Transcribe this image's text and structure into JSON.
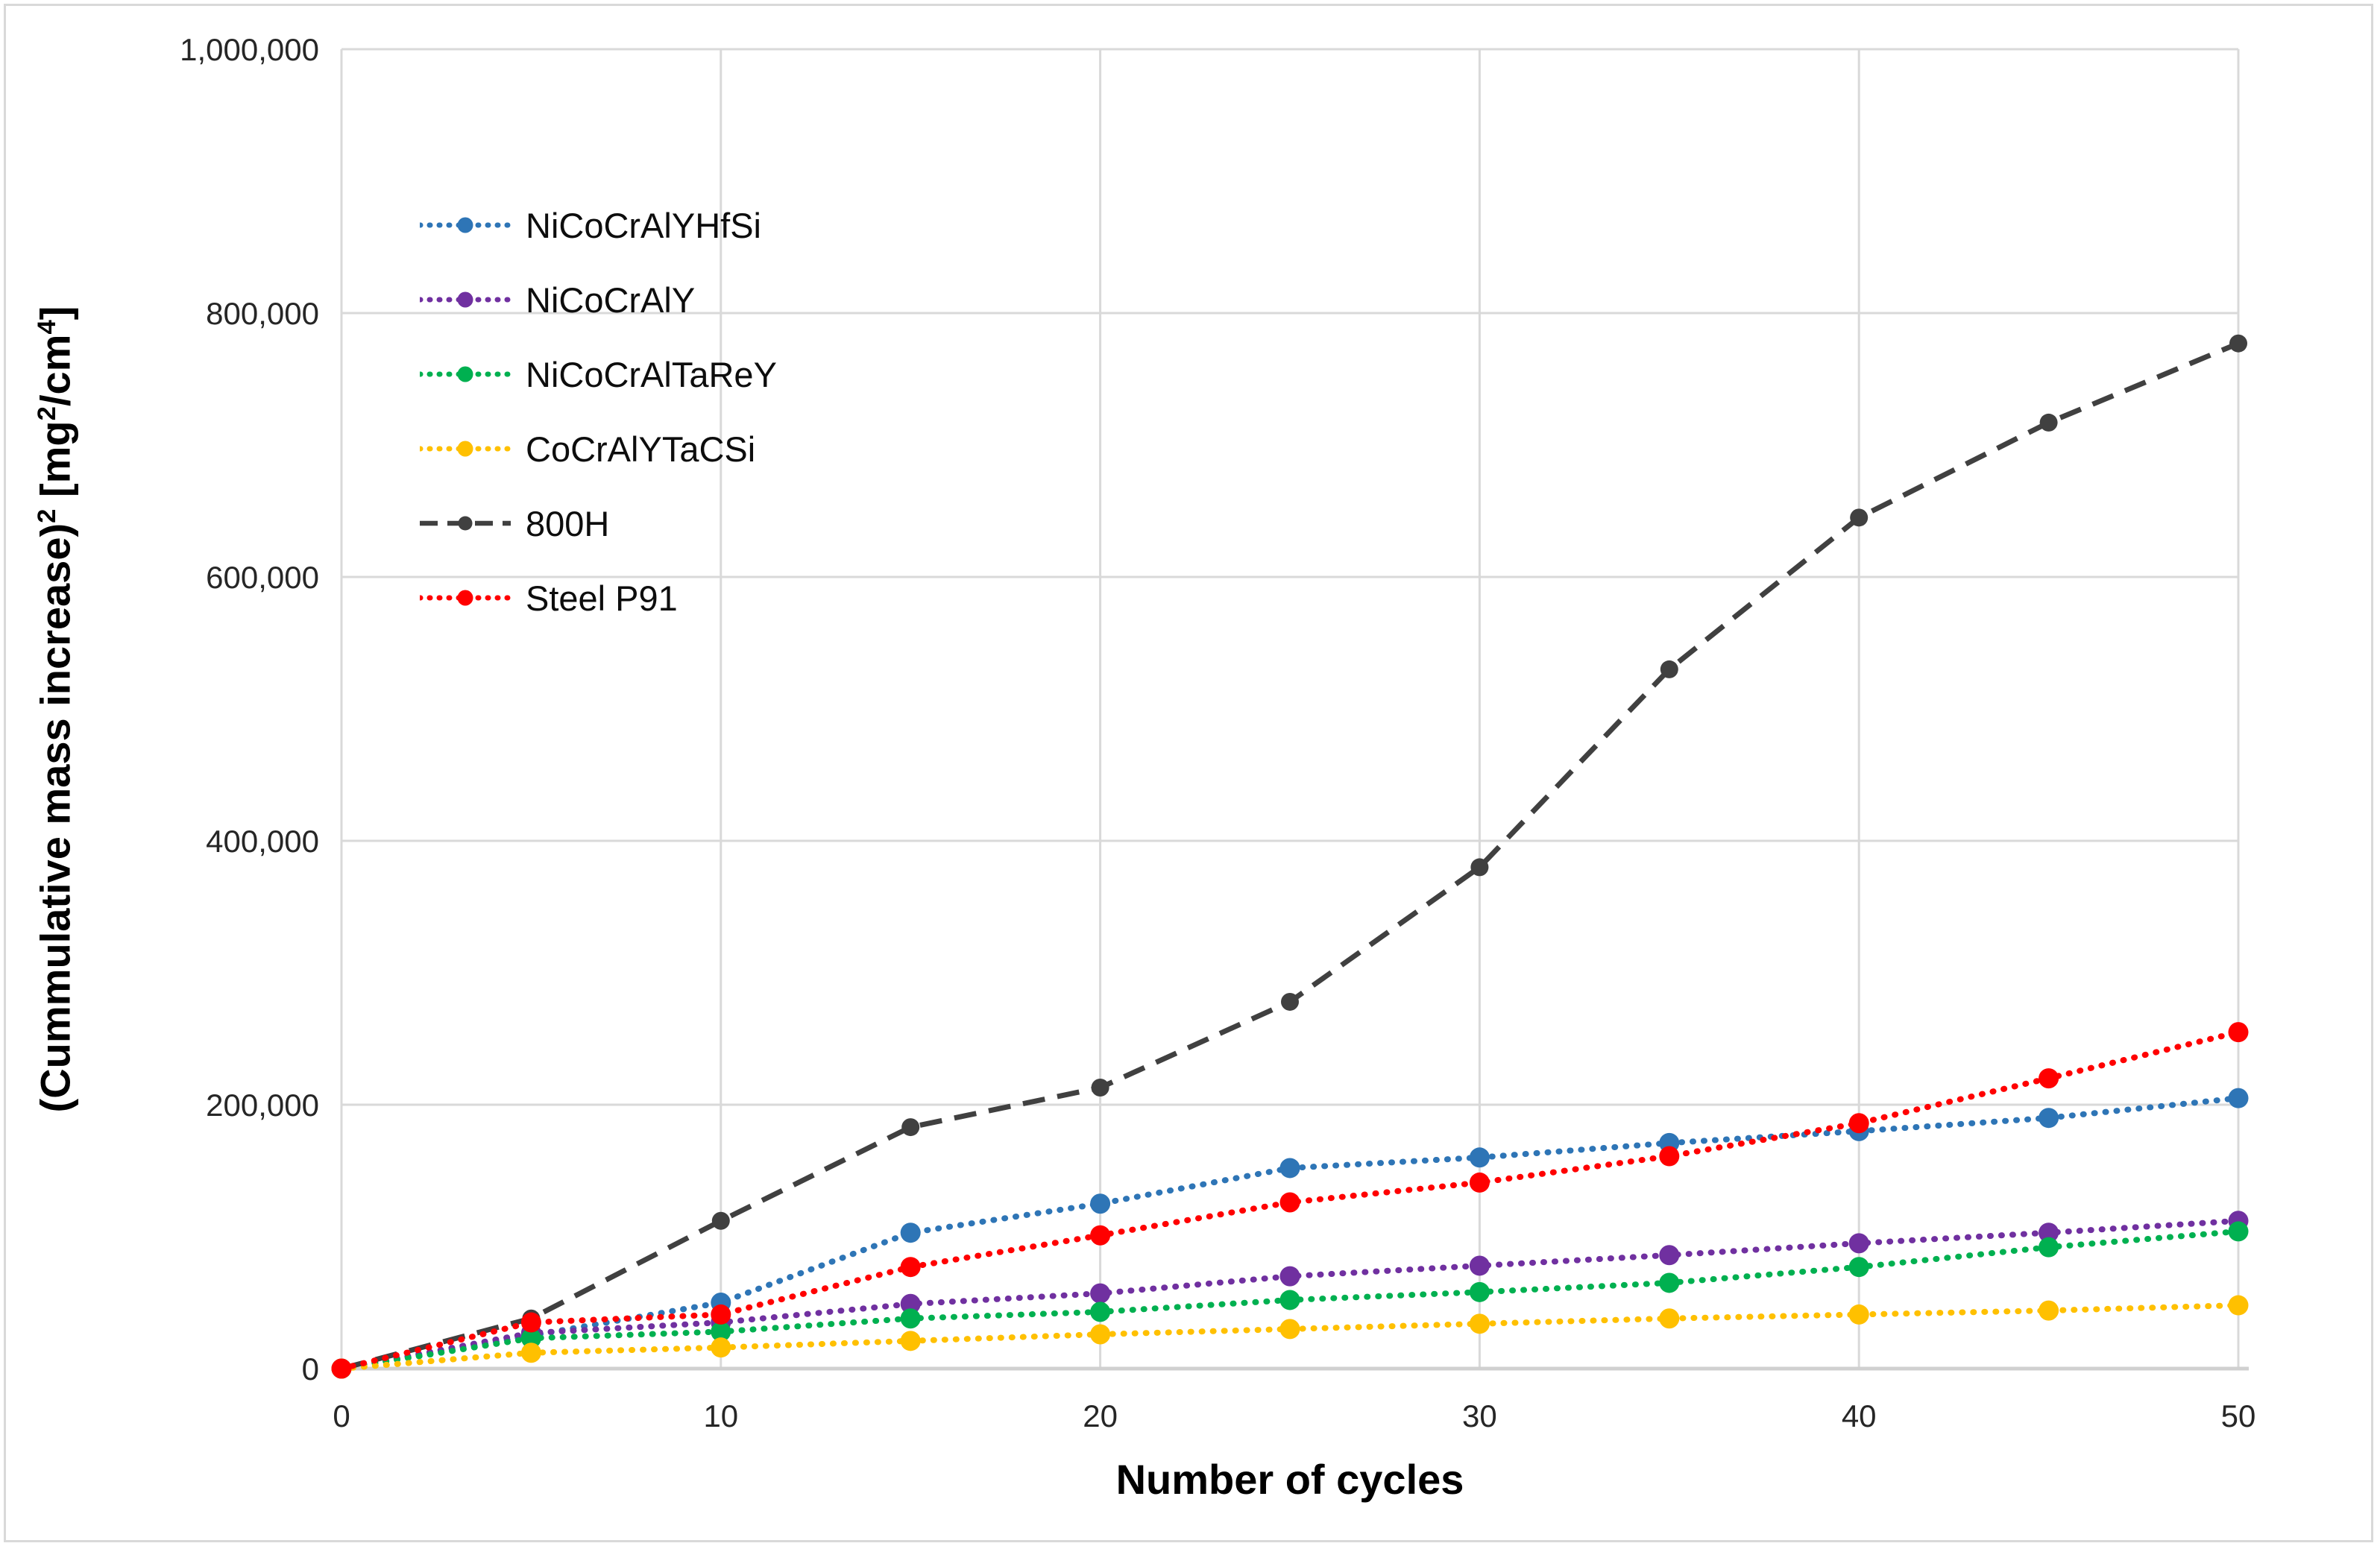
{
  "chart_data": {
    "type": "line",
    "x": [
      0,
      5,
      10,
      15,
      20,
      25,
      30,
      35,
      40,
      45,
      50
    ],
    "series": [
      {
        "name": "NiCoCrAlYHfSi",
        "color": "#2E75B6",
        "style": "dotted",
        "values": [
          0,
          25000,
          50000,
          103000,
          125000,
          152000,
          160000,
          171000,
          180000,
          190000,
          205000
        ]
      },
      {
        "name": "NiCoCrAlY",
        "color": "#7030A0",
        "style": "dotted",
        "values": [
          0,
          27000,
          35000,
          49000,
          57000,
          70000,
          78000,
          86000,
          95000,
          103000,
          112000
        ]
      },
      {
        "name": "NiCoCrAlTaReY",
        "color": "#00B050",
        "style": "dotted",
        "values": [
          0,
          23000,
          28000,
          38000,
          43000,
          52000,
          58000,
          65000,
          77000,
          92000,
          104000
        ]
      },
      {
        "name": "CoCrAlYTaCSi",
        "color": "#FFC000",
        "style": "dotted",
        "values": [
          0,
          12000,
          16000,
          21000,
          26000,
          30000,
          34000,
          38000,
          41000,
          44000,
          48000
        ]
      },
      {
        "name": "800H",
        "color": "#404040",
        "style": "dashed",
        "values": [
          0,
          38000,
          112000,
          183000,
          213000,
          278000,
          380000,
          530000,
          645000,
          717000,
          777000
        ]
      },
      {
        "name": "Steel P91",
        "color": "#FF0000",
        "style": "dotted",
        "values": [
          0,
          35000,
          41000,
          77000,
          101000,
          126000,
          141000,
          161000,
          186000,
          220000,
          255000
        ]
      }
    ],
    "title": "",
    "xlabel": "Number of cycles",
    "ylabel": "(Cummulative mass increase)2 [mg2/cm4]",
    "ylabel_parts": [
      {
        "text": "(Cummulative mass increase)",
        "sup": false
      },
      {
        "text": "2",
        "sup": true
      },
      {
        "text": " [mg",
        "sup": false
      },
      {
        "text": "2",
        "sup": true
      },
      {
        "text": "/cm",
        "sup": false
      },
      {
        "text": "4",
        "sup": true
      },
      {
        "text": "]",
        "sup": false
      }
    ],
    "xlim": [
      0,
      50
    ],
    "ylim": [
      0,
      1000000
    ],
    "x_ticks": [
      {
        "value": 0,
        "label": "0"
      },
      {
        "value": 10,
        "label": "10"
      },
      {
        "value": 20,
        "label": "20"
      },
      {
        "value": 30,
        "label": "30"
      },
      {
        "value": 40,
        "label": "40"
      },
      {
        "value": 50,
        "label": "50"
      }
    ],
    "y_ticks": [
      {
        "value": 0,
        "label": "0"
      },
      {
        "value": 200000,
        "label": "200,000"
      },
      {
        "value": 400000,
        "label": "400,000"
      },
      {
        "value": 600000,
        "label": "600,000"
      },
      {
        "value": 800000,
        "label": "800,000"
      },
      {
        "value": 1000000,
        "label": "1,000,000"
      }
    ],
    "grid": true,
    "legend_position": "upper-left-inside"
  },
  "colors": {
    "gridline": "#d9d9d9",
    "axis_line": "#d0d0d0",
    "frame": "#d9d9d9",
    "tick_text": "#262626",
    "title_text": "#000000",
    "background": "#ffffff"
  }
}
